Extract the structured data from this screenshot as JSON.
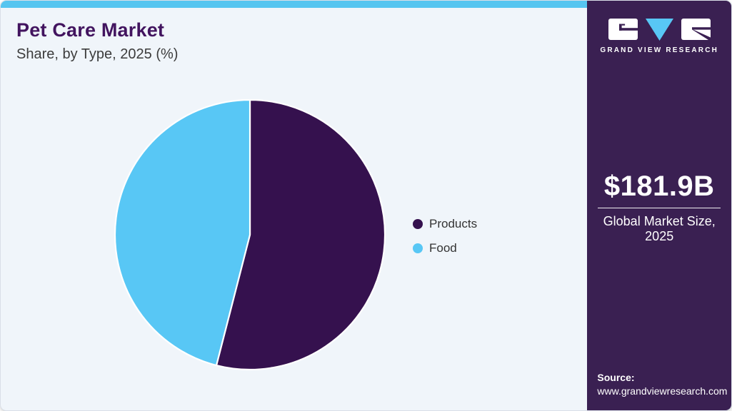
{
  "header": {
    "title": "Pet Care Market",
    "subtitle": "Share, by Type, 2025 (%)"
  },
  "chart_data": {
    "type": "pie",
    "title": "Pet Care Market Share, by Type, 2025 (%)",
    "labels": [
      "Products",
      "Food"
    ],
    "values": [
      54,
      46
    ],
    "unit": "%",
    "colors": [
      "#35114E",
      "#58C7F5"
    ],
    "start_angle_deg": 0,
    "direction": "clockwise",
    "legend_position": "right",
    "slice_separator_color": "#FFFFFF"
  },
  "sidebar": {
    "logo_wordmark": "GRAND VIEW RESEARCH",
    "market_size_value": "$181.9B",
    "market_size_label": "Global Market Size, 2025",
    "source_label": "Source:",
    "source_url": "www.grandviewresearch.com"
  },
  "theme": {
    "topbar_accent": "#56C5F0",
    "main_background": "#F0F5FA",
    "sidebar_background": "#3A2052",
    "title_color": "#42145F",
    "subtitle_color": "#3C3C3C",
    "legend_text_color": "#333333"
  }
}
